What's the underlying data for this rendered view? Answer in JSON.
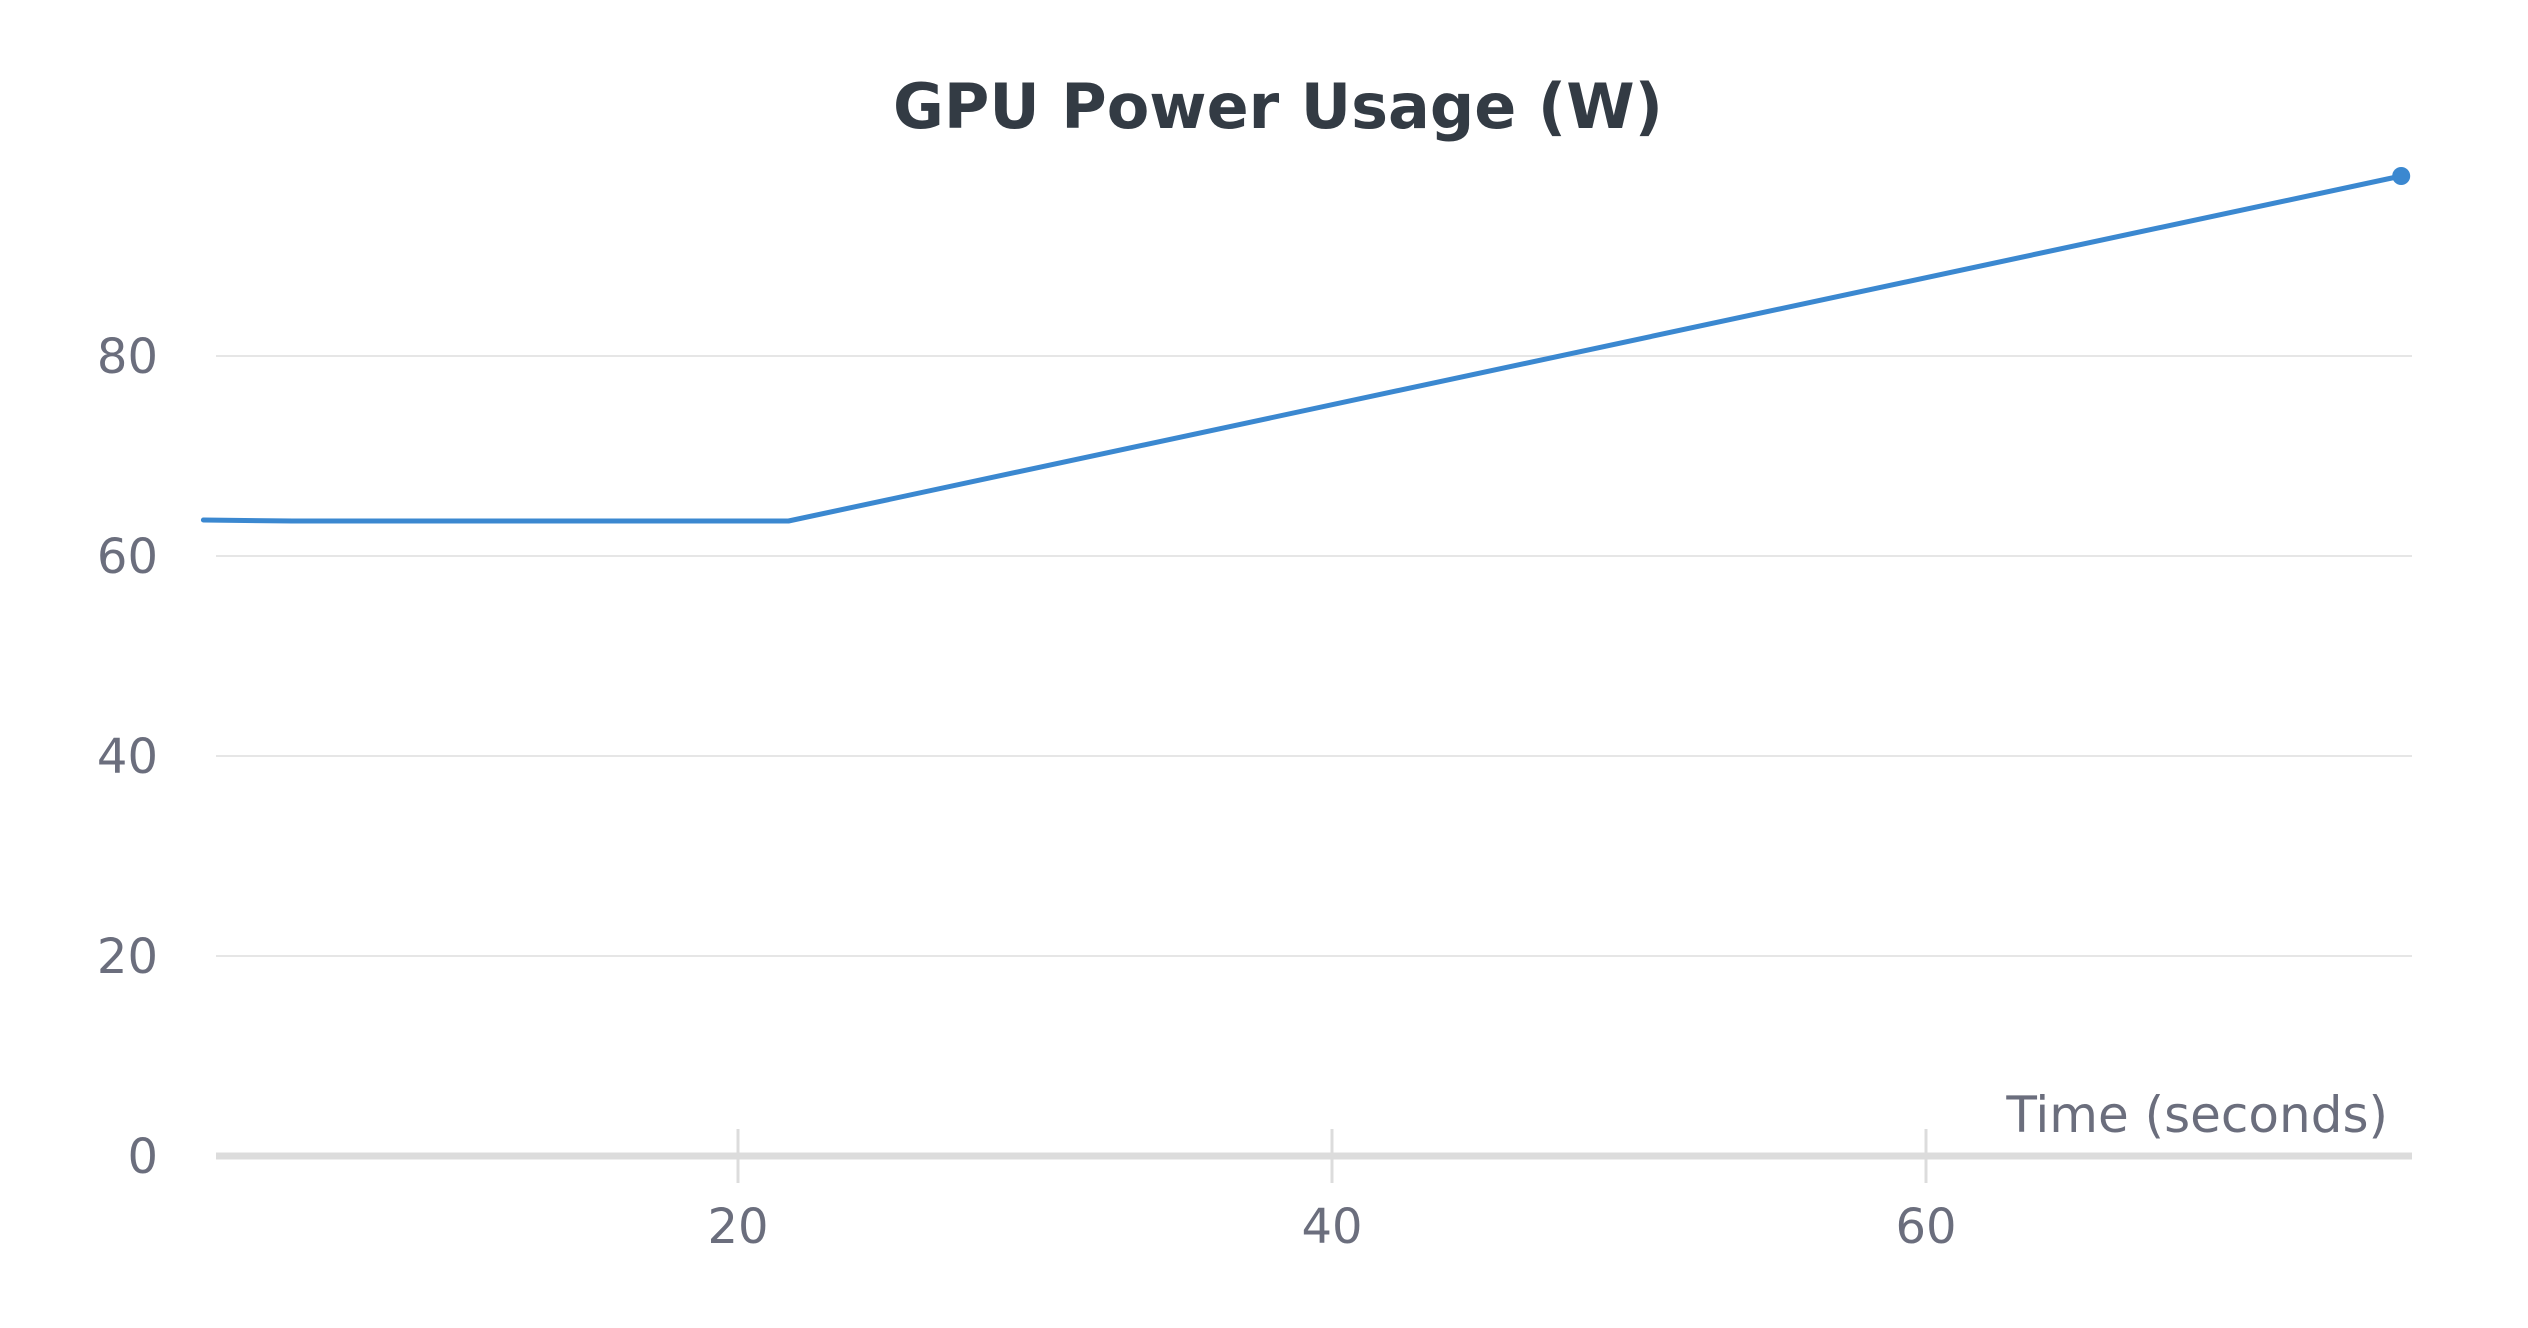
{
  "chart_data": {
    "type": "line",
    "title": "GPU Power Usage (W)",
    "xlabel": "Time (seconds)",
    "ylabel": "",
    "xlim": [
      2,
      76
    ],
    "ylim": [
      0,
      98
    ],
    "x_ticks": [
      20,
      40,
      60
    ],
    "y_ticks": [
      0,
      20,
      40,
      60,
      80
    ],
    "grid": "horizontal",
    "legend": "none",
    "colors": {
      "line": "#3b88d0",
      "grid": "#e6e6e6",
      "axis": "#dcdcdc",
      "tick_text": "#6b6e7d",
      "title_text": "#333b44"
    },
    "series": [
      {
        "x": [
          2,
          5,
          21.7,
          76
        ],
        "y": [
          63.6,
          63.5,
          63.5,
          98
        ],
        "end_marker": true
      }
    ]
  }
}
